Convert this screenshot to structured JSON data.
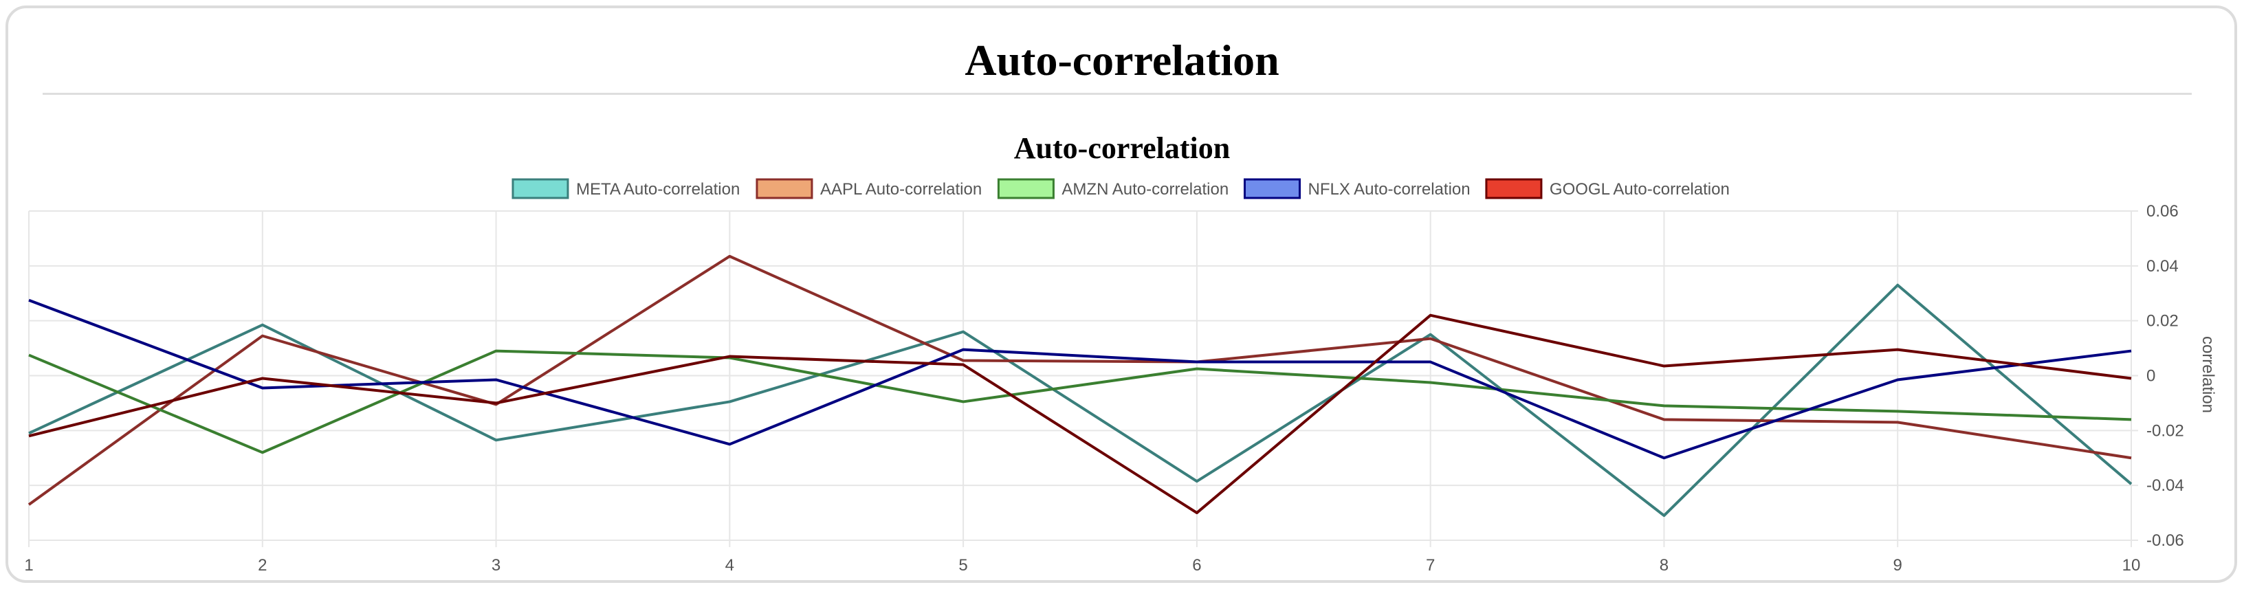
{
  "page": {
    "title": "Auto-correlation"
  },
  "chart_data": {
    "type": "line",
    "title": "Auto-correlation",
    "xlabel": "",
    "ylabel": "correlation",
    "x": [
      1,
      2,
      3,
      4,
      5,
      6,
      7,
      8,
      9,
      10
    ],
    "xticks": [
      "1",
      "2",
      "3",
      "4",
      "5",
      "6",
      "7",
      "8",
      "9",
      "10"
    ],
    "ylim": [
      -0.06,
      0.06
    ],
    "yticks": [
      0.06,
      0.04,
      0.02,
      0,
      -0.02,
      -0.04,
      -0.06
    ],
    "ytick_labels": [
      "0.06",
      "0.04",
      "0.02",
      "0",
      "-0.02",
      "-0.04",
      "-0.06"
    ],
    "grid": true,
    "legend_position": "top",
    "y_axis_position": "right",
    "series": [
      {
        "name": "META Auto-correlation",
        "color": "#3a7f7c",
        "fill": "#7adcd3",
        "values": [
          -0.021,
          0.0185,
          -0.0235,
          -0.0095,
          0.016,
          -0.0385,
          0.015,
          -0.051,
          0.033,
          -0.0395
        ]
      },
      {
        "name": "AAPL Auto-correlation",
        "color": "#8b2e2a",
        "fill": "#eea776",
        "values": [
          -0.047,
          0.0145,
          -0.0105,
          0.0435,
          0.0055,
          0.005,
          0.0135,
          -0.016,
          -0.017,
          -0.03
        ]
      },
      {
        "name": "AMZN Auto-correlation",
        "color": "#3a7f30",
        "fill": "#a8f59a",
        "values": [
          0.0075,
          -0.028,
          0.009,
          0.0065,
          -0.0095,
          0.0025,
          -0.0025,
          -0.011,
          -0.013,
          -0.016
        ]
      },
      {
        "name": "NFLX Auto-correlation",
        "color": "#000080",
        "fill": "#6f8cec",
        "values": [
          0.0275,
          -0.0045,
          -0.0015,
          -0.025,
          0.0095,
          0.005,
          0.005,
          -0.03,
          -0.0015,
          0.009
        ]
      },
      {
        "name": "GOOGL Auto-correlation",
        "color": "#6b0000",
        "fill": "#e83e2d",
        "values": [
          -0.022,
          -0.001,
          -0.01,
          0.007,
          0.004,
          -0.05,
          0.022,
          0.0035,
          0.0095,
          -0.001
        ]
      }
    ]
  }
}
